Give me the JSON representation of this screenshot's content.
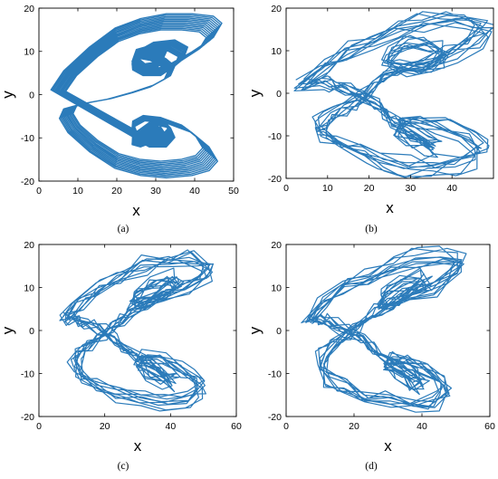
{
  "chart_data": [
    {
      "type": "line",
      "panel": "(a)",
      "xlabel": "x",
      "ylabel": "y",
      "xlim": [
        0,
        50
      ],
      "ylim": [
        -20,
        20
      ],
      "xticks": [
        0,
        10,
        20,
        30,
        40,
        50
      ],
      "yticks": [
        -20,
        -10,
        0,
        10,
        20
      ],
      "color": "#2b7bba",
      "grid": false,
      "style": "smooth",
      "series": [
        {
          "x": [
            5,
            8,
            14,
            20,
            26,
            32,
            38,
            43,
            45,
            43,
            38,
            32,
            27,
            24,
            25,
            29,
            34,
            37,
            36,
            32,
            27,
            24,
            25,
            29,
            32,
            31,
            27,
            25,
            26,
            29,
            32,
            34,
            33,
            29,
            24,
            18,
            12,
            8,
            7,
            9,
            14,
            20,
            26,
            32,
            38,
            42,
            44,
            42,
            38,
            32,
            27,
            24,
            25,
            28,
            32,
            34,
            33,
            30,
            27,
            24,
            26,
            29,
            31,
            30,
            27,
            25,
            25,
            29,
            32,
            30,
            26
          ],
          "y": [
            1,
            5,
            10,
            14,
            16,
            17,
            17,
            16.5,
            15,
            12,
            9,
            6,
            5,
            6.5,
            9,
            11,
            11.5,
            10,
            7.5,
            5,
            5,
            7,
            9.5,
            10.5,
            9,
            7,
            6.5,
            8,
            9.5,
            9,
            7.5,
            6,
            4,
            2,
            0.5,
            -1,
            -2,
            -3,
            -5,
            -8,
            -12,
            -15.5,
            -17,
            -17.5,
            -17,
            -16,
            -14,
            -11,
            -8,
            -6,
            -5.5,
            -7,
            -9.5,
            -11,
            -11,
            -9,
            -7,
            -6.5,
            -8.5,
            -10.5,
            -11,
            -10,
            -8,
            -7.5,
            -9,
            -10,
            -10.5,
            -9.5,
            -8.5,
            -9,
            -10
          ]
        }
      ]
    },
    {
      "type": "line",
      "panel": "(b)",
      "xlabel": "x",
      "ylabel": "y",
      "xlim": [
        0,
        50
      ],
      "ylim": [
        -20,
        20
      ],
      "xticks": [
        0,
        10,
        20,
        30,
        40
      ],
      "yticks": [
        -20,
        -10,
        0,
        10,
        20
      ],
      "color": "#2b7bba",
      "grid": false,
      "style": "noisy",
      "series": [
        {
          "x": [
            4,
            9,
            15,
            21,
            27,
            33,
            39,
            44,
            48,
            46,
            40,
            34,
            28,
            24,
            25,
            29,
            34,
            38,
            37,
            32,
            27,
            23,
            21,
            19,
            16,
            13,
            10,
            8,
            9,
            13,
            18,
            23,
            29,
            35,
            41,
            46,
            47,
            44,
            38,
            32,
            28,
            27,
            30,
            34,
            36,
            33,
            29,
            26,
            24,
            22,
            18,
            14,
            11,
            9
          ],
          "y": [
            2,
            6,
            10,
            13,
            15.5,
            17,
            17.5,
            17,
            15.5,
            12.5,
            9.5,
            7,
            6,
            7,
            9.5,
            11.5,
            12,
            10.5,
            8,
            6,
            5.5,
            3.5,
            1.5,
            -0.5,
            -2.5,
            -4.5,
            -6,
            -7.5,
            -9.5,
            -12,
            -14.5,
            -16.5,
            -17.5,
            -17.5,
            -16.5,
            -15,
            -12.5,
            -10,
            -8,
            -7,
            -7.5,
            -9,
            -11,
            -12.5,
            -12.5,
            -10.5,
            -8.5,
            -6.5,
            -4.5,
            -2.5,
            -0.5,
            1,
            2,
            2.5
          ]
        }
      ]
    },
    {
      "type": "line",
      "panel": "(c)",
      "xlabel": "x",
      "ylabel": "y",
      "xlim": [
        0,
        60
      ],
      "ylim": [
        -20,
        20
      ],
      "xticks": [
        0,
        20,
        40,
        60
      ],
      "yticks": [
        -20,
        -10,
        0,
        10,
        20
      ],
      "color": "#2b7bba",
      "grid": false,
      "style": "noisy",
      "series": [
        {
          "x": [
            8,
            12,
            18,
            25,
            32,
            39,
            46,
            51,
            50,
            44,
            37,
            31,
            28,
            30,
            35,
            40,
            42,
            38,
            33,
            28,
            25,
            22,
            19,
            15,
            12,
            11,
            13,
            18,
            24,
            31,
            38,
            45,
            50,
            48,
            43,
            37,
            32,
            30,
            33,
            38,
            41,
            38,
            33,
            29,
            26,
            23,
            19,
            15,
            12,
            10
          ],
          "y": [
            3,
            6.5,
            10,
            13,
            15.5,
            17,
            17.5,
            16,
            13,
            10,
            8,
            6.5,
            6.5,
            8.5,
            11,
            12.5,
            11.5,
            9,
            6.5,
            4.5,
            2.5,
            0.5,
            -1.5,
            -3.5,
            -6,
            -8.5,
            -11,
            -13.5,
            -15.5,
            -16.5,
            -17,
            -16.5,
            -14.5,
            -11.5,
            -9,
            -7,
            -6.5,
            -8,
            -10.5,
            -12.5,
            -12.5,
            -10.5,
            -8,
            -6,
            -4,
            -2,
            0,
            1.5,
            2.5,
            3
          ]
        }
      ]
    },
    {
      "type": "line",
      "panel": "(d)",
      "xlabel": "x",
      "ylabel": "y",
      "xlim": [
        0,
        60
      ],
      "ylim": [
        -20,
        20
      ],
      "xticks": [
        0,
        20,
        40,
        60
      ],
      "yticks": [
        -20,
        -10,
        0,
        10,
        20
      ],
      "color": "#2b7bba",
      "grid": false,
      "style": "noisy",
      "series": [
        {
          "x": [
            7,
            11,
            17,
            24,
            31,
            38,
            45,
            51,
            49,
            43,
            36,
            30,
            27,
            29,
            34,
            39,
            41,
            37,
            32,
            27,
            24,
            21,
            18,
            14,
            11,
            10,
            12,
            17,
            23,
            30,
            37,
            43,
            47,
            45,
            40,
            35,
            31,
            30,
            33,
            37,
            40,
            37,
            32,
            28,
            25,
            22,
            18,
            14,
            11,
            9
          ],
          "y": [
            3,
            6.5,
            10,
            13,
            15.5,
            17,
            17.5,
            16,
            13,
            10,
            8,
            6.5,
            6.5,
            8.5,
            11,
            12.5,
            11.5,
            9,
            6.5,
            4.5,
            2.5,
            0.5,
            -1.5,
            -3.5,
            -6,
            -8.5,
            -11,
            -13.5,
            -15.5,
            -16.5,
            -17,
            -16.5,
            -14.5,
            -11.5,
            -9,
            -7,
            -6.5,
            -8,
            -10.5,
            -12.5,
            -12.5,
            -10.5,
            -8,
            -6,
            -4,
            -2,
            0,
            1.5,
            2.5,
            3
          ]
        }
      ]
    }
  ],
  "captions": [
    "(a)",
    "(b)",
    "(c)",
    "(d)"
  ]
}
